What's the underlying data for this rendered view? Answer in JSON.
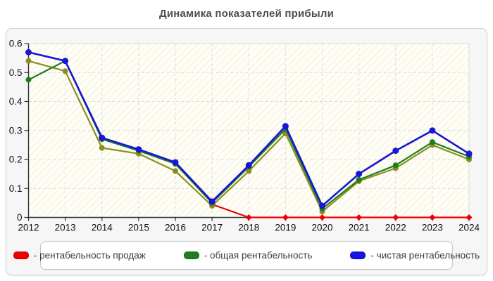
{
  "title": "Динамика показателей прибыли",
  "chart_data": {
    "type": "line",
    "title": "Динамика показателей прибыли",
    "x_labels": [
      "2012",
      "2013",
      "2014",
      "2015",
      "2016",
      "2017",
      "2018",
      "2019",
      "2020",
      "2021",
      "2022",
      "2023",
      "2024"
    ],
    "y_tick_labels": [
      "0",
      "0.1",
      "0.2",
      "0.3",
      "0.4",
      "0.5",
      "0.6"
    ],
    "ylim": [
      0,
      0.6
    ],
    "grid": true,
    "legend_position": "bottom",
    "plot_background": "hatched-ivory",
    "series": [
      {
        "name": "рентабельность продаж",
        "color": "#ec0000",
        "marker": "diamond",
        "values": [
          null,
          null,
          null,
          null,
          null,
          0.045,
          0,
          0,
          0,
          0,
          0,
          0,
          0
        ]
      },
      {
        "name": "общая рентабельность",
        "color": "#1e7e1e",
        "marker": "circle",
        "values": [
          0.475,
          0.54,
          0.27,
          0.23,
          0.185,
          0.05,
          0.175,
          0.305,
          0.03,
          0.13,
          0.18,
          0.26,
          0.21
        ]
      },
      {
        "name": "чистая рентабельность",
        "color": "#1717d8",
        "marker": "circle",
        "values": [
          0.57,
          0.54,
          0.275,
          0.235,
          0.19,
          0.055,
          0.18,
          0.315,
          0.04,
          0.15,
          0.23,
          0.3,
          0.22
        ]
      },
      {
        "name": "",
        "color": "#8d8d21",
        "marker": "circle",
        "values": [
          0.54,
          0.505,
          0.24,
          0.22,
          0.16,
          0.04,
          0.16,
          0.29,
          0.02,
          0.125,
          0.17,
          0.25,
          0.2
        ]
      }
    ]
  },
  "legend": {
    "items": [
      {
        "label": "- рентабельность продаж",
        "color": "#ec0000"
      },
      {
        "label": "- общая рентабельность",
        "color": "#1e7e1e"
      },
      {
        "label": "- чистая рентабельность",
        "color": "#1414e6"
      }
    ]
  },
  "colors": {
    "axis": "#333333",
    "grid": "#dcdcdc",
    "panel_bg": "#f6f6f6",
    "plot_base": "#fbf9e9",
    "title_text": "#4f4f4f"
  }
}
